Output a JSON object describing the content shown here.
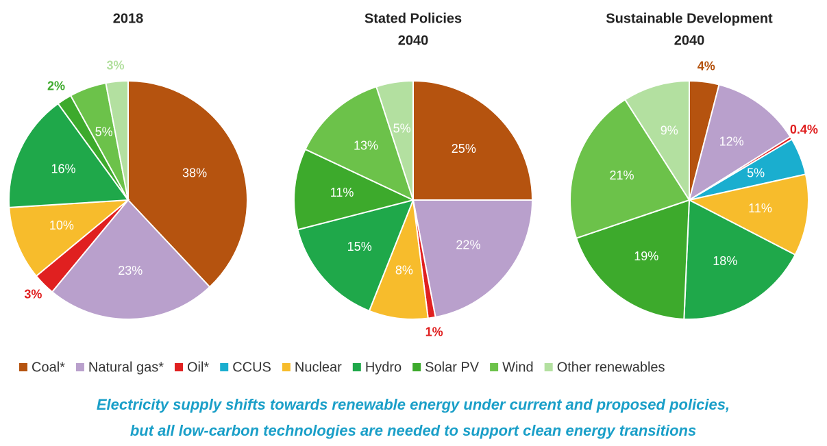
{
  "chart_data": [
    {
      "type": "pie",
      "title_lines": [
        "2018"
      ],
      "values": [
        38,
        23,
        3,
        null,
        10,
        16,
        2,
        5,
        3
      ],
      "value_labels": [
        "38%",
        "23%",
        "3%",
        null,
        "10%",
        "16%",
        "2%",
        "5%",
        "3%"
      ]
    },
    {
      "type": "pie",
      "title_lines": [
        "Stated Policies",
        "2040"
      ],
      "values": [
        25,
        22,
        1,
        null,
        8,
        15,
        11,
        13,
        5
      ],
      "value_labels": [
        "25%",
        "22%",
        "1%",
        null,
        "8%",
        "15%",
        "11%",
        "13%",
        "5%"
      ]
    },
    {
      "type": "pie",
      "title_lines": [
        "Sustainable Development",
        "2040"
      ],
      "values": [
        4,
        12,
        0.4,
        5,
        11,
        18,
        19,
        21,
        9
      ],
      "value_labels": [
        "4%",
        "12%",
        "0.4%",
        "5%",
        "11%",
        "18%",
        "19%",
        "21%",
        "9%"
      ]
    }
  ],
  "legend": {
    "categories": [
      "Coal*",
      "Natural gas*",
      "Oil*",
      "CCUS",
      "Nuclear",
      "Hydro",
      "Solar PV",
      "Wind",
      "Other renewables"
    ],
    "colors": [
      "#b5530f",
      "#b9a0cc",
      "#e02020",
      "#1aaecf",
      "#f7bc2c",
      "#1fa84a",
      "#3daa2c",
      "#6cc24a",
      "#b3e0a0"
    ]
  },
  "caption": [
    "Electricity supply shifts towards renewable energy under current and proposed policies,",
    "but all low-carbon technologies are needed to support clean energy transitions"
  ]
}
